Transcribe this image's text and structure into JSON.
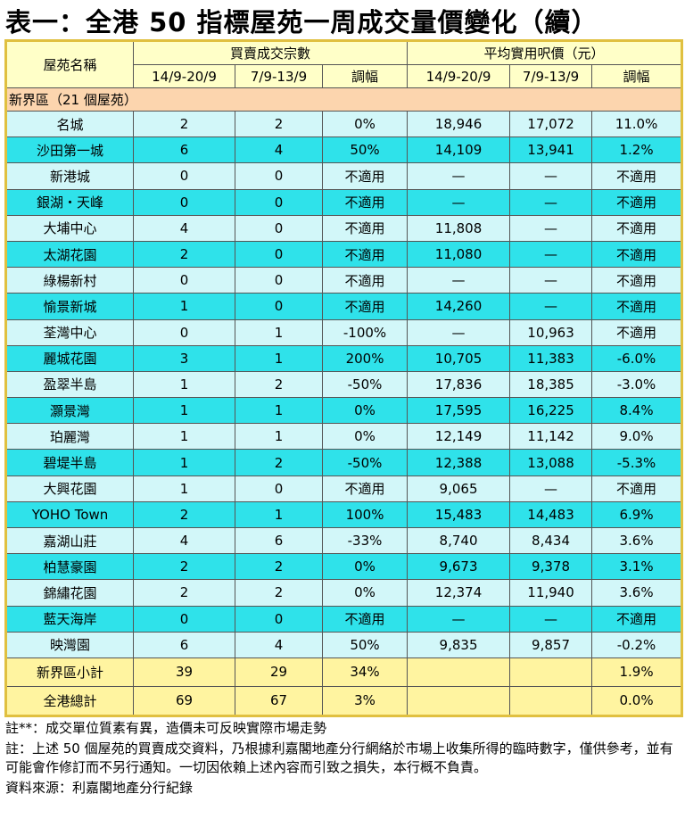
{
  "title": "表一：全港 50 指標屋苑一周成交量價變化（續）",
  "header": {
    "name": "屋苑名稱",
    "group1": "買賣成交宗數",
    "group2": "平均實用呎價（元）",
    "columns": [
      "14/9-20/9",
      "7/9-13/9",
      "調幅",
      "14/9-20/9",
      "7/9-13/9",
      "調幅"
    ]
  },
  "table": {
    "region": "新界區（21 個屋苑）",
    "rows": [
      [
        "名城",
        "2",
        "2",
        "0%",
        "18,946",
        "17,072",
        "11.0%"
      ],
      [
        "沙田第一城",
        "6",
        "4",
        "50%",
        "14,109",
        "13,941",
        "1.2%"
      ],
      [
        "新港城",
        "0",
        "0",
        "不適用",
        "—",
        "—",
        "不適用"
      ],
      [
        "銀湖・天峰",
        "0",
        "0",
        "不適用",
        "—",
        "—",
        "不適用"
      ],
      [
        "大埔中心",
        "4",
        "0",
        "不適用",
        "11,808",
        "—",
        "不適用"
      ],
      [
        "太湖花園",
        "2",
        "0",
        "不適用",
        "11,080",
        "—",
        "不適用"
      ],
      [
        "綠楊新村",
        "0",
        "0",
        "不適用",
        "—",
        "—",
        "不適用"
      ],
      [
        "愉景新城",
        "1",
        "0",
        "不適用",
        "14,260",
        "—",
        "不適用"
      ],
      [
        "荃灣中心",
        "0",
        "1",
        "-100%",
        "—",
        "10,963",
        "不適用"
      ],
      [
        "麗城花園",
        "3",
        "1",
        "200%",
        "10,705",
        "11,383",
        "-6.0%"
      ],
      [
        "盈翠半島",
        "1",
        "2",
        "-50%",
        "17,836",
        "18,385",
        "-3.0%"
      ],
      [
        "灝景灣",
        "1",
        "1",
        "0%",
        "17,595",
        "16,225",
        "8.4%"
      ],
      [
        "珀麗灣",
        "1",
        "1",
        "0%",
        "12,149",
        "11,142",
        "9.0%"
      ],
      [
        "碧堤半島",
        "1",
        "2",
        "-50%",
        "12,388",
        "13,088",
        "-5.3%"
      ],
      [
        "大興花園",
        "1",
        "0",
        "不適用",
        "9,065",
        "—",
        "不適用"
      ],
      [
        "YOHO Town",
        "2",
        "1",
        "100%",
        "15,483",
        "14,483",
        "6.9%"
      ],
      [
        "嘉湖山莊",
        "4",
        "6",
        "-33%",
        "8,740",
        "8,434",
        "3.6%"
      ],
      [
        "柏慧豪園",
        "2",
        "2",
        "0%",
        "9,673",
        "9,378",
        "3.1%"
      ],
      [
        "錦繡花園",
        "2",
        "2",
        "0%",
        "12,374",
        "11,940",
        "3.6%"
      ],
      [
        "藍天海岸",
        "0",
        "0",
        "不適用",
        "—",
        "—",
        "不適用"
      ],
      [
        "映灣園",
        "6",
        "4",
        "50%",
        "9,835",
        "9,857",
        "-0.2%"
      ]
    ],
    "totals": [
      [
        "新界區小計",
        "39",
        "29",
        "34%",
        null,
        null,
        "1.9%"
      ],
      [
        "全港總計",
        "69",
        "67",
        "3%",
        null,
        null,
        "0.0%"
      ]
    ]
  },
  "notes": [
    "註**：成交單位質素有異，造價未可反映實際市場走勢",
    "註：上述 50 個屋苑的買賣成交資料，乃根據利嘉閣地產分行網絡於市場上收集所得的臨時數字，僅供參考，並有可能會作修訂而不另行通知。一切因依賴上述內容而引致之損失，本行概不負責。",
    "資料來源：利嘉閣地產分行紀錄"
  ]
}
